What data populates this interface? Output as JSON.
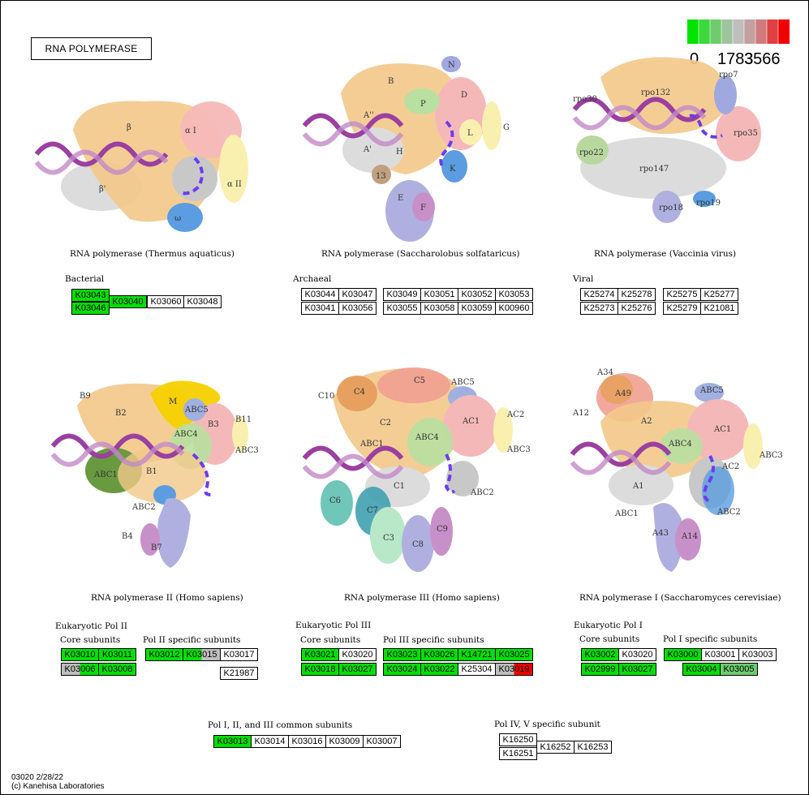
{
  "title": "RNA POLYMERASE",
  "legend": {
    "labels": [
      "0",
      "1783",
      "3566"
    ],
    "colors": [
      "#00e400",
      "#3cd83c",
      "#6ecc6e",
      "#9ec49e",
      "#bebebe",
      "#c4a0a0",
      "#d07a7a",
      "#e04040",
      "#f00000"
    ]
  },
  "structures": {
    "thermus": {
      "caption": "RNA polymerase (Thermus aquaticus)",
      "subunits": [
        "β",
        "β'",
        "α I",
        "α II",
        "ω"
      ]
    },
    "sulfolobus": {
      "caption": "RNA polymerase (Saccharolobus solfataricus)",
      "subunits": [
        "B",
        "A''",
        "A'",
        "H",
        "P",
        "N",
        "D",
        "L",
        "G",
        "K",
        "13",
        "E",
        "F"
      ]
    },
    "vaccinia": {
      "caption": "RNA polymerase (Vaccinia virus)",
      "subunits": [
        "rpo132",
        "rpo7",
        "rpo30",
        "rpo35",
        "rpo22",
        "rpo147",
        "rpo18",
        "rpo19"
      ]
    },
    "pol2": {
      "caption": "RNA polymerase II (Homo sapiens)",
      "subunits": [
        "B9",
        "B2",
        "M",
        "ABC5",
        "B3",
        "B11",
        "ABC4",
        "ABC3",
        "ABC1",
        "B1",
        "ABC2",
        "B4",
        "B7"
      ]
    },
    "pol3": {
      "caption": "RNA polymerase III (Homo sapiens)",
      "subunits": [
        "C5",
        "C10",
        "C4",
        "ABC5",
        "AC2",
        "C2",
        "AC1",
        "ABC1",
        "ABC4",
        "ABC3",
        "C1",
        "ABC2",
        "C6",
        "C7",
        "C9",
        "C3",
        "C8"
      ]
    },
    "pol1": {
      "caption": "RNA polymerase I (Saccharomyces cerevisiae)",
      "subunits": [
        "A34",
        "A49",
        "A12",
        "ABC5",
        "A2",
        "AC1",
        "ABC4",
        "ABC3",
        "A1",
        "AC2",
        "ABC1",
        "ABC2",
        "A43",
        "A14"
      ]
    }
  },
  "groups": {
    "bacterial": {
      "label": "Bacterial"
    },
    "archaeal": {
      "label": "Archaeal"
    },
    "viral": {
      "label": "Viral"
    },
    "pol2": {
      "label": "Eukaryotic Pol II",
      "core": "Core subunits",
      "specific": "Pol II specific subunits"
    },
    "pol3": {
      "label": "Eukaryotic Pol III",
      "core": "Core subunits",
      "specific": "Pol III specific subunits"
    },
    "pol1": {
      "label": "Eukaryotic Pol I",
      "core": "Core subunits",
      "specific": "Pol I specific subunits"
    },
    "common": {
      "label": "Pol I, II, and III common subunits"
    },
    "pol45": {
      "label": "Pol IV, V specific subunit"
    }
  },
  "genes": [
    {
      "text": "K03043",
      "fill": "#00e000",
      "group": "bacterial"
    },
    {
      "text": "K03046",
      "fill": "#00e000",
      "group": "bacterial"
    },
    {
      "text": "K03040",
      "fill": "#00e000",
      "group": "bacterial"
    },
    {
      "text": "K03060",
      "fill": "#ffffff",
      "group": "bacterial"
    },
    {
      "text": "K03048",
      "fill": "#ffffff",
      "group": "bacterial"
    },
    {
      "text": "K03044",
      "fill": "#ffffff",
      "group": "archaeal"
    },
    {
      "text": "K03047",
      "fill": "#ffffff",
      "group": "archaeal"
    },
    {
      "text": "K03041",
      "fill": "#ffffff",
      "group": "archaeal"
    },
    {
      "text": "K03056",
      "fill": "#ffffff",
      "group": "archaeal"
    },
    {
      "text": "K03049",
      "fill": "#ffffff",
      "group": "archaeal"
    },
    {
      "text": "K03051",
      "fill": "#ffffff",
      "group": "archaeal"
    },
    {
      "text": "K03052",
      "fill": "#ffffff",
      "group": "archaeal"
    },
    {
      "text": "K03053",
      "fill": "#ffffff",
      "group": "archaeal"
    },
    {
      "text": "K03055",
      "fill": "#ffffff",
      "group": "archaeal"
    },
    {
      "text": "K03058",
      "fill": "#ffffff",
      "group": "archaeal"
    },
    {
      "text": "K03059",
      "fill": "#ffffff",
      "group": "archaeal"
    },
    {
      "text": "K00960",
      "fill": "#ffffff",
      "group": "archaeal"
    },
    {
      "text": "K25274",
      "fill": "#ffffff",
      "group": "viral"
    },
    {
      "text": "K25278",
      "fill": "#ffffff",
      "group": "viral"
    },
    {
      "text": "K25273",
      "fill": "#ffffff",
      "group": "viral"
    },
    {
      "text": "K25276",
      "fill": "#ffffff",
      "group": "viral"
    },
    {
      "text": "K25275",
      "fill": "#ffffff",
      "group": "viral"
    },
    {
      "text": "K25277",
      "fill": "#ffffff",
      "group": "viral"
    },
    {
      "text": "K25279",
      "fill": "#ffffff",
      "group": "viral"
    },
    {
      "text": "K21081",
      "fill": "#ffffff",
      "group": "viral"
    },
    {
      "text": "K03010",
      "fill": "#00e000",
      "group": "pol2-core"
    },
    {
      "text": "K03011",
      "fill": "#00e000",
      "group": "pol2-core"
    },
    {
      "text": "K03006",
      "fill": "split:#bebebe:#00e000",
      "group": "pol2-core"
    },
    {
      "text": "K03008",
      "fill": "#00e000",
      "group": "pol2-core"
    },
    {
      "text": "K03012",
      "fill": "#00e000",
      "group": "pol2-specific"
    },
    {
      "text": "K03015",
      "fill": "split:#00e000:#bebebe",
      "group": "pol2-specific"
    },
    {
      "text": "K03017",
      "fill": "#ffffff",
      "group": "pol2-specific"
    },
    {
      "text": "K21987",
      "fill": "#ffffff",
      "group": "pol2-specific"
    },
    {
      "text": "K03021",
      "fill": "#00e000",
      "group": "pol3-core"
    },
    {
      "text": "K03020",
      "fill": "#ffffff",
      "group": "pol3-core"
    },
    {
      "text": "K03018",
      "fill": "#00e000",
      "group": "pol3-core"
    },
    {
      "text": "K03027",
      "fill": "#00e000",
      "group": "pol3-core"
    },
    {
      "text": "K03023",
      "fill": "#00e000",
      "group": "pol3-specific"
    },
    {
      "text": "K03026",
      "fill": "#00e000",
      "group": "pol3-specific"
    },
    {
      "text": "K14721",
      "fill": "#00e000",
      "group": "pol3-specific"
    },
    {
      "text": "K03025",
      "fill": "#00e000",
      "group": "pol3-specific"
    },
    {
      "text": "K03024",
      "fill": "#00e000",
      "group": "pol3-specific"
    },
    {
      "text": "K03022",
      "fill": "#00e000",
      "group": "pol3-specific"
    },
    {
      "text": "K25304",
      "fill": "#ffffff",
      "group": "pol3-specific"
    },
    {
      "text": "K03019",
      "fill": "split:#bebebe:#f00000",
      "group": "pol3-specific"
    },
    {
      "text": "K03002",
      "fill": "#00e000",
      "group": "pol1-core"
    },
    {
      "text": "K03020",
      "fill": "#ffffff",
      "group": "pol1-core"
    },
    {
      "text": "K02999",
      "fill": "#00e000",
      "group": "pol1-core"
    },
    {
      "text": "K03027",
      "fill": "#00e000",
      "group": "pol1-core"
    },
    {
      "text": "K03000",
      "fill": "#00e000",
      "group": "pol1-specific"
    },
    {
      "text": "K03001",
      "fill": "#ffffff",
      "group": "pol1-specific"
    },
    {
      "text": "K03003",
      "fill": "#ffffff",
      "group": "pol1-specific"
    },
    {
      "text": "K03004",
      "fill": "#00e000",
      "group": "pol1-specific"
    },
    {
      "text": "K03005",
      "fill": "#6ecc6e",
      "group": "pol1-specific"
    },
    {
      "text": "K03013",
      "fill": "#00e000",
      "group": "common"
    },
    {
      "text": "K03014",
      "fill": "#ffffff",
      "group": "common"
    },
    {
      "text": "K03016",
      "fill": "#ffffff",
      "group": "common"
    },
    {
      "text": "K03009",
      "fill": "#ffffff",
      "group": "common"
    },
    {
      "text": "K03007",
      "fill": "#ffffff",
      "group": "common"
    },
    {
      "text": "K16250",
      "fill": "#ffffff",
      "group": "pol45"
    },
    {
      "text": "K16251",
      "fill": "#ffffff",
      "group": "pol45"
    },
    {
      "text": "K16252",
      "fill": "#ffffff",
      "group": "pol45"
    },
    {
      "text": "K16253",
      "fill": "#ffffff",
      "group": "pol45"
    }
  ],
  "footer": {
    "line1": "03020 2/28/22",
    "line2": "(c) Kanehisa Laboratories"
  }
}
